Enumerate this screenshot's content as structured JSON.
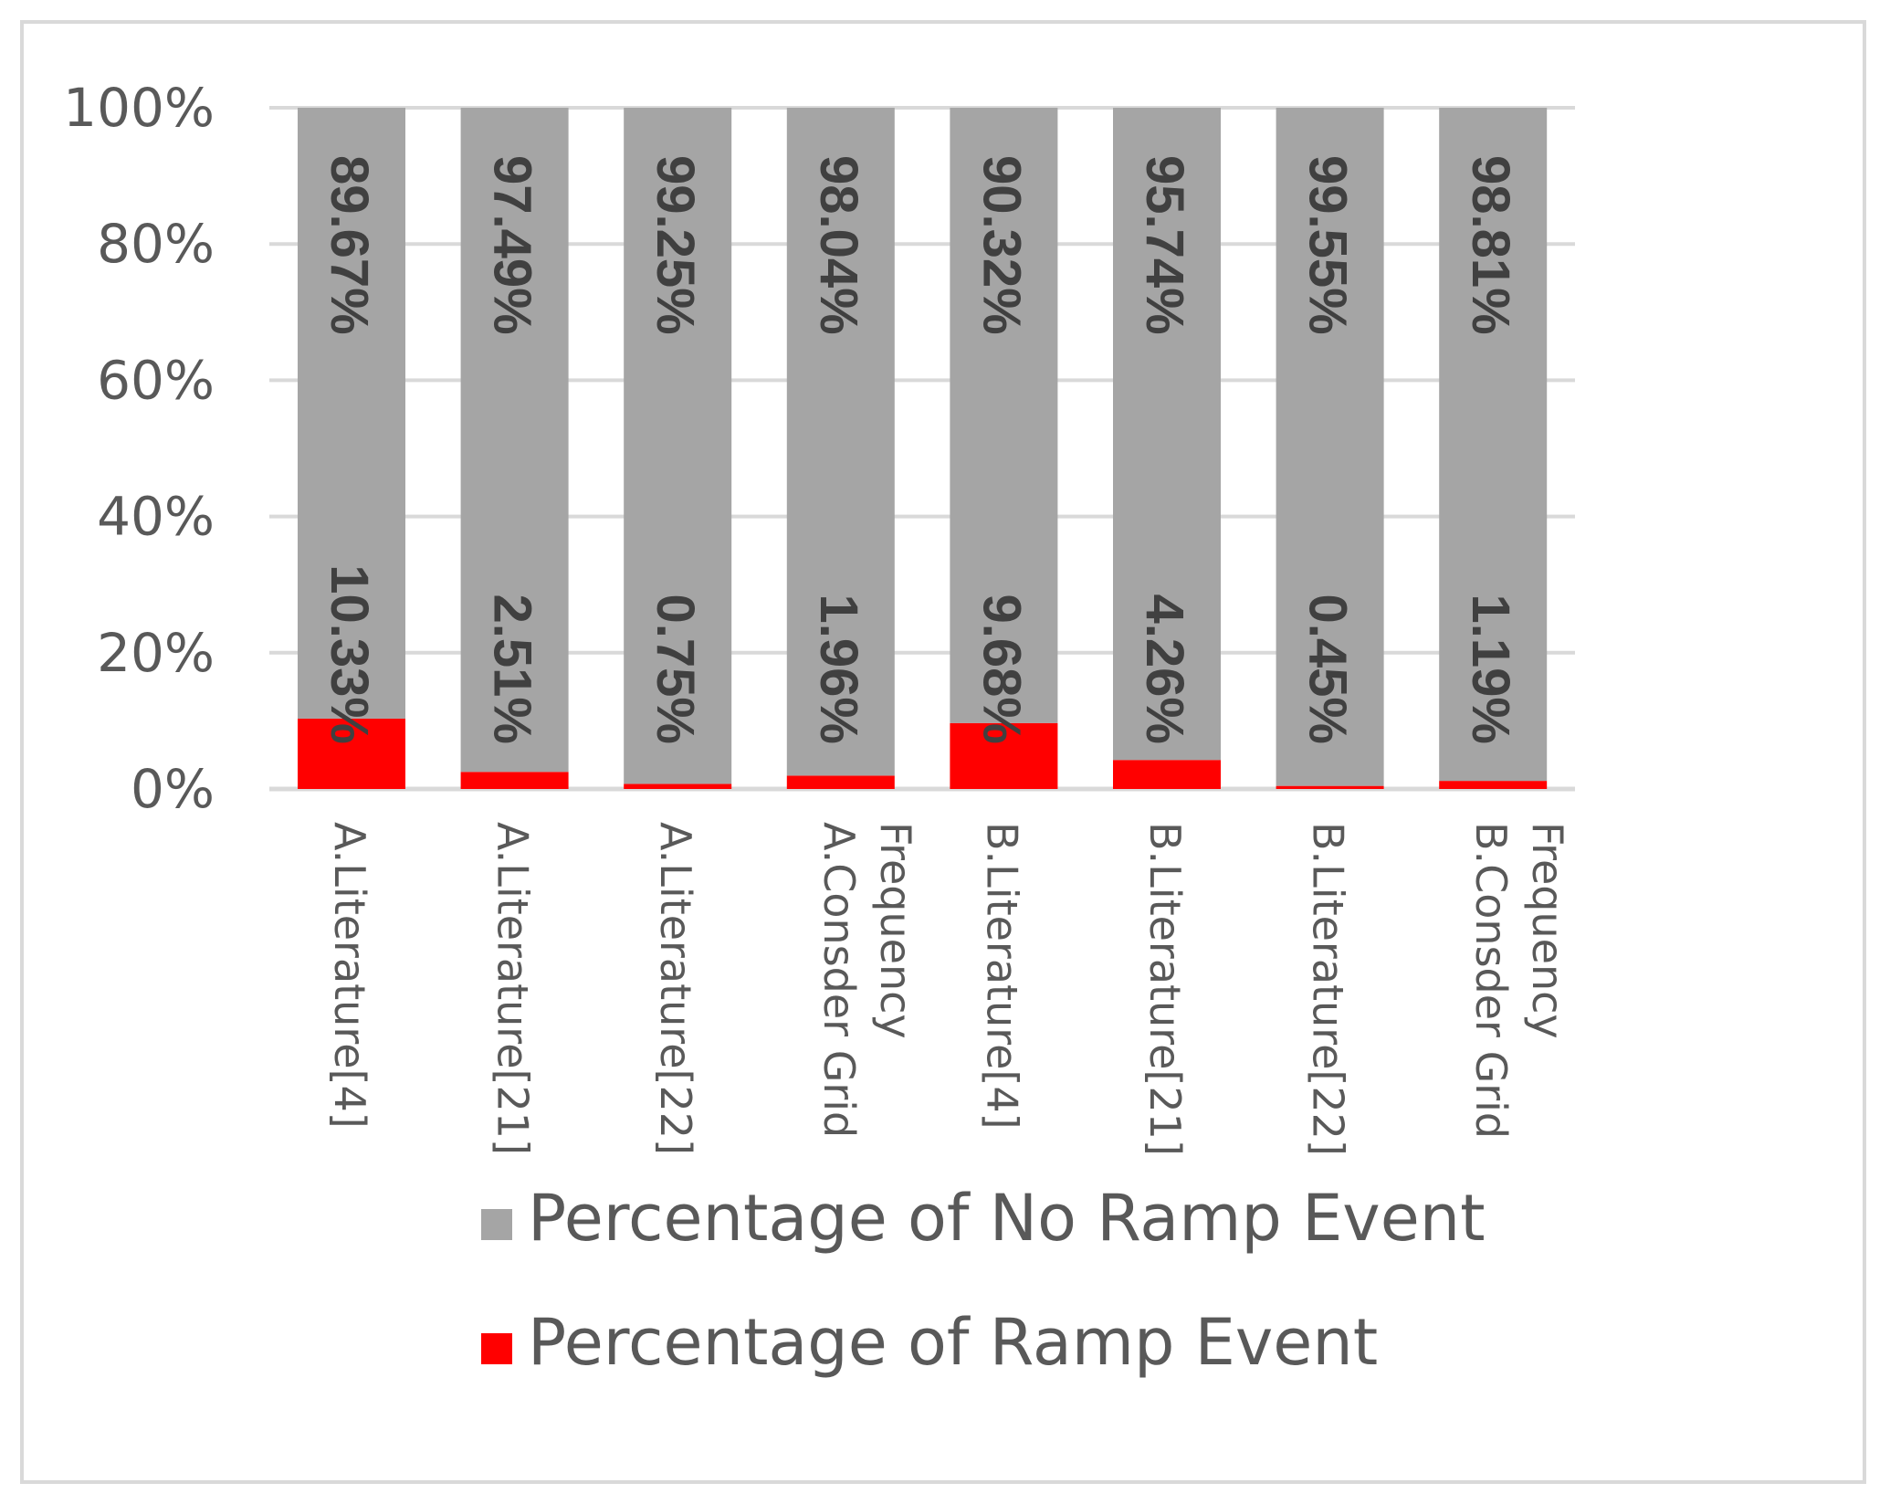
{
  "chart_data": {
    "type": "bar",
    "stacked": true,
    "percent_stacked": true,
    "title": "",
    "xlabel": "",
    "ylabel": "",
    "ylim": [
      0,
      100
    ],
    "yticks": [
      "0%",
      "20%",
      "40%",
      "60%",
      "80%",
      "100%"
    ],
    "ytick_values": [
      0,
      20,
      40,
      60,
      80,
      100
    ],
    "grid": true,
    "legend_position": "bottom",
    "categories": [
      [
        "A.Literature[4]"
      ],
      [
        "A.Literature[21]"
      ],
      [
        "A.Literature[22]"
      ],
      [
        "A.Consder Grid",
        "Frequency"
      ],
      [
        "B.Literature[4]"
      ],
      [
        "B.Literature[21]"
      ],
      [
        "B.Literature[22]"
      ],
      [
        "B.Consder Grid",
        "Frequency"
      ]
    ],
    "series": [
      {
        "name": "Percentage of Ramp Event",
        "color": "#ff0000",
        "values": [
          10.33,
          2.51,
          0.75,
          1.96,
          9.68,
          4.26,
          0.45,
          1.19
        ],
        "labels": [
          "10.33%",
          "2.51%",
          "0.75%",
          "1.96%",
          "9.68%",
          "4.26%",
          "0.45%",
          "1.19%"
        ]
      },
      {
        "name": "Percentage of No Ramp Event",
        "color": "#a5a5a5",
        "values": [
          89.67,
          97.49,
          99.25,
          98.04,
          90.32,
          95.74,
          99.55,
          98.81
        ],
        "labels": [
          "89.67%",
          "97.49%",
          "99.25%",
          "98.04%",
          "90.32%",
          "95.74%",
          "99.55%",
          "98.81%"
        ]
      }
    ],
    "legend": [
      {
        "label": "Percentage of No Ramp Event",
        "color": "#a5a5a5"
      },
      {
        "label": "Percentage of Ramp Event",
        "color": "#ff0000"
      }
    ]
  }
}
